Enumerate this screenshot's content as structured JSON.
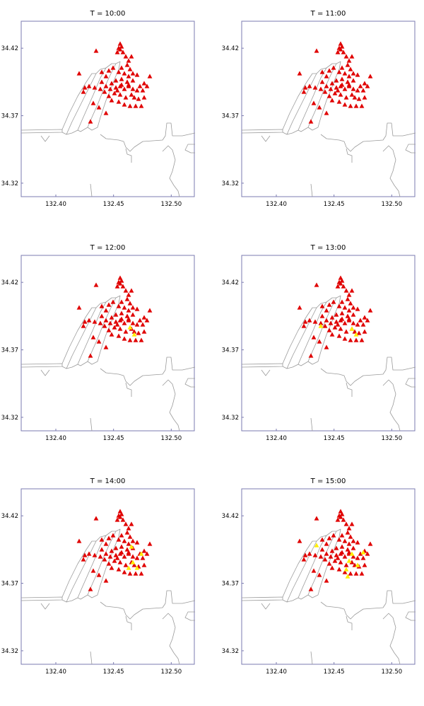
{
  "colors": {
    "frame": "#7b7bb0",
    "coastline": "#9a9a9a",
    "marker_red": "#e00000",
    "marker_yellow": "#ffee00"
  },
  "marker_shape": "triangle",
  "chart_data": [
    {
      "type": "scatter",
      "title": "T = 10:00",
      "x_ticks": [
        "132.40",
        "132.45",
        "132.50"
      ],
      "y_ticks": [
        "34.42",
        "34.37",
        "34.32"
      ],
      "xlim": [
        132.37,
        132.52
      ],
      "ylim": [
        34.31,
        34.44
      ]
    },
    {
      "type": "scatter",
      "title": "T = 11:00",
      "x_ticks": [
        "132.40",
        "132.45",
        "132.50"
      ],
      "y_ticks": [
        "34.42",
        "34.37",
        "34.32"
      ],
      "xlim": [
        132.37,
        132.52
      ],
      "ylim": [
        34.31,
        34.44
      ]
    },
    {
      "type": "scatter",
      "title": "T = 12:00",
      "x_ticks": [
        "132.40",
        "132.45",
        "132.50"
      ],
      "y_ticks": [
        "34.42",
        "34.37",
        "34.32"
      ],
      "xlim": [
        132.37,
        132.52
      ],
      "ylim": [
        34.31,
        34.44
      ]
    },
    {
      "type": "scatter",
      "title": "T = 13:00",
      "x_ticks": [
        "132.40",
        "132.45",
        "132.50"
      ],
      "y_ticks": [
        "34.42",
        "34.37",
        "34.32"
      ],
      "xlim": [
        132.37,
        132.52
      ],
      "ylim": [
        34.31,
        34.44
      ]
    },
    {
      "type": "scatter",
      "title": "T = 14:00",
      "x_ticks": [
        "132.40",
        "132.45",
        "132.50"
      ],
      "y_ticks": [
        "34.42",
        "34.37",
        "34.32"
      ],
      "xlim": [
        132.37,
        132.52
      ],
      "ylim": [
        34.31,
        34.44
      ]
    },
    {
      "type": "scatter",
      "title": "T = 15:00",
      "x_ticks": [
        "132.40",
        "132.45",
        "132.50"
      ],
      "y_ticks": [
        "34.42",
        "34.37",
        "34.32"
      ],
      "xlim": [
        132.37,
        132.52
      ],
      "ylim": [
        34.31,
        34.44
      ]
    }
  ]
}
